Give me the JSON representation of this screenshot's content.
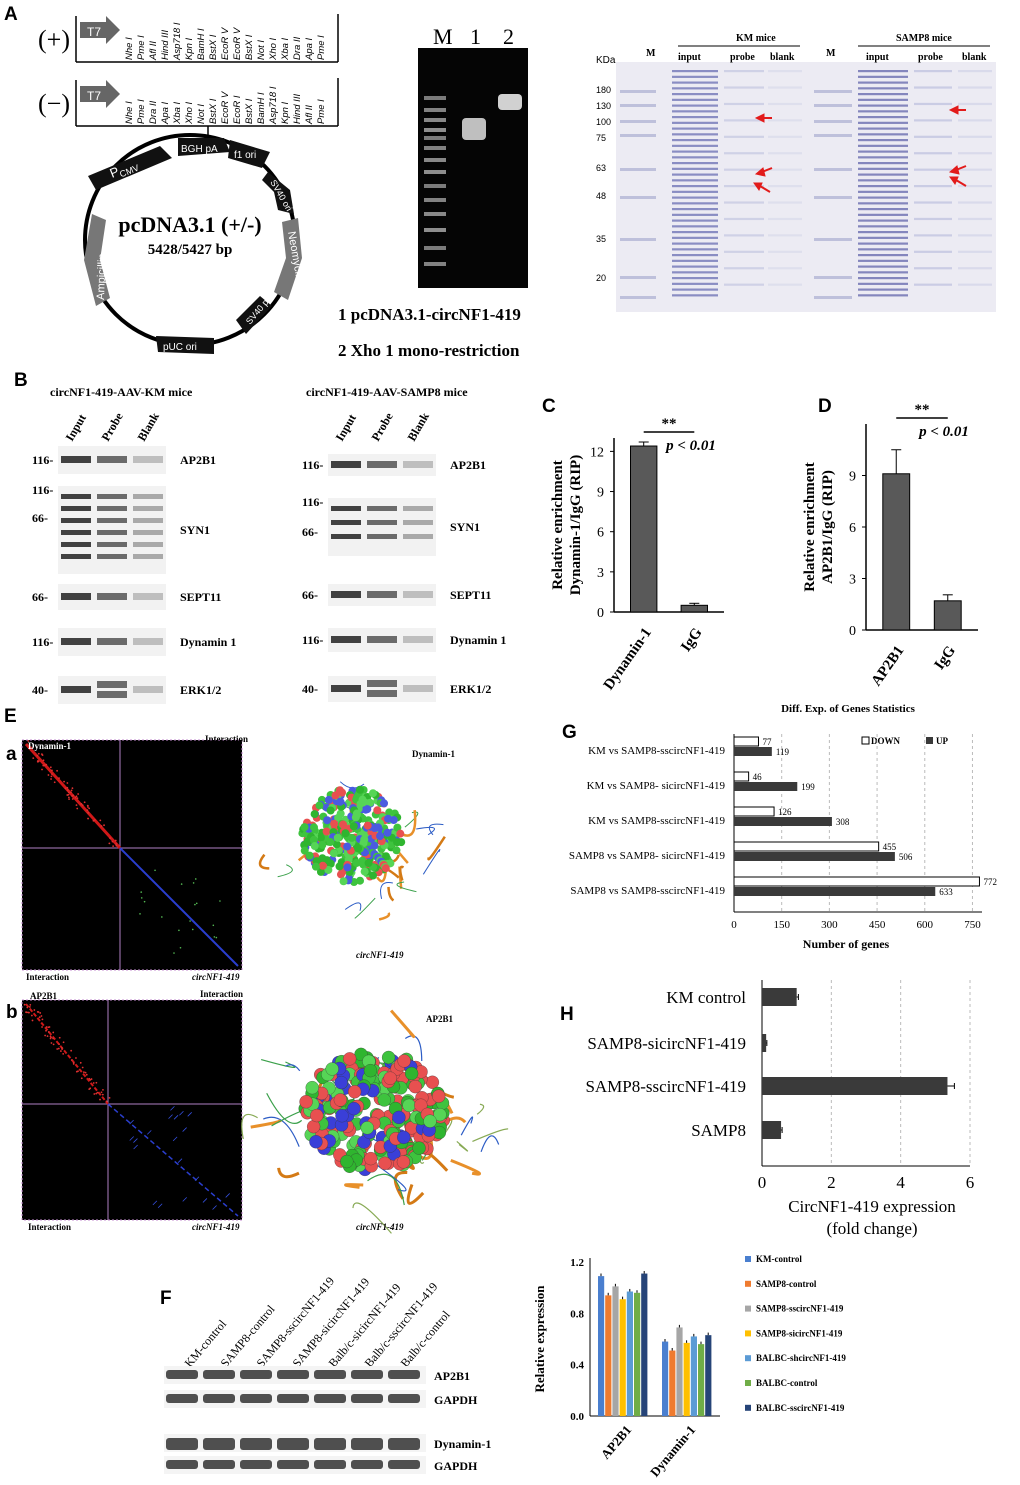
{
  "panel_labels": {
    "A": "A",
    "B": "B",
    "C": "C",
    "D": "D",
    "E": "E",
    "Ea": "a",
    "Eb": "b",
    "F": "F",
    "G": "G",
    "H": "H"
  },
  "vector": {
    "plus": "(+)",
    "minus": "(−)",
    "t7": "T7",
    "plus_sites": [
      "Nhe I",
      "Pme I",
      "Afl II",
      "Hind III",
      "Asp718 I",
      "Kpn I",
      "BamH I",
      "BstX I",
      "EcoR V",
      "EcoR V",
      "BstX I",
      "Not I",
      "Xho I",
      "Xba I",
      "Dra II",
      "Apa I",
      "Pme I"
    ],
    "minus_sites": [
      "Nhe I",
      "Pme I",
      "Dra II",
      "Apa I",
      "Xba I",
      "Xho I",
      "Not I",
      "BstX I",
      "EcoR V",
      "EcoR I",
      "BstX I",
      "BamH I",
      "Asp718 I",
      "Kpn I",
      "Hind III",
      "Afl II",
      "Pme I"
    ],
    "name": "pcDNA3.1 (+/-)",
    "size": "5428/5427 bp",
    "features": {
      "pcmv": "P",
      "pcmv_sub": "CMV",
      "bgh": "BGH pA",
      "f1": "f1 ori",
      "sv40": "SV40 ori",
      "neo": "Neomycin",
      "sv40pa": "SV40 pA",
      "puc": "pUC ori",
      "amp": "Ampicillin"
    }
  },
  "gel": {
    "lanes": [
      "M",
      "1",
      "2"
    ],
    "caption1": "1 pcDNA3.1-circNF1-419",
    "caption2": "2 Xho 1 mono-restriction"
  },
  "sds": {
    "kda": "KDa",
    "markers": [
      "180",
      "130",
      "100",
      "75",
      "63",
      "48",
      "35",
      "20"
    ],
    "km_title": "KM mice",
    "samp8_title": "SAMP8 mice",
    "lanes": [
      "M",
      "input",
      "probe",
      "blank"
    ]
  },
  "panelB": {
    "left_title": "circNF1-419-AAV-KM mice",
    "right_title": "circNF1-419-AAV-SAMP8 mice",
    "lanes": [
      "Input",
      "Probe",
      "Blank"
    ],
    "left_rows": [
      {
        "marker": "116-",
        "protein": "AP2B1"
      },
      {
        "marker": "116-",
        "marker2": "66-",
        "protein": "SYN1"
      },
      {
        "marker": "66-",
        "protein": "SEPT11"
      },
      {
        "marker": "116-",
        "protein": "Dynamin 1"
      },
      {
        "marker": "40-",
        "protein": "ERK1/2"
      }
    ],
    "right_rows": [
      {
        "marker": "116-",
        "protein": "AP2B1"
      },
      {
        "marker": "116-",
        "marker2": "66-",
        "protein": "SYN1"
      },
      {
        "marker": "66-",
        "protein": "SEPT11"
      },
      {
        "marker": "116-",
        "protein": "Dynamin 1"
      },
      {
        "marker": "40-",
        "protein": "ERK1/2"
      }
    ]
  },
  "panelE": {
    "a_title": "Dynamin-1",
    "interaction": "Interaction",
    "rna": "circNF1-419",
    "b_title": "AP2B1",
    "mol_a": "Dynamin-1",
    "mol_b": "AP2B1"
  },
  "panelF": {
    "lanes": [
      "KM-control",
      "SAMP8-control",
      "SAMP8-sscircNF1-419",
      "SAMP8-sicircNF1-419",
      "Balb/c-sicircNF1-419",
      "Balb/c-sscircNF1-419",
      "Balb/c-control"
    ],
    "rows": [
      "AP2B1",
      "GAPDH",
      "Dynamin-1",
      "GAPDH"
    ]
  },
  "chart_data": [
    {
      "id": "C",
      "type": "bar",
      "categories": [
        "Dynamin-1",
        "IgG"
      ],
      "values": [
        12.4,
        0.5
      ],
      "errors": [
        0.3,
        0.15
      ],
      "ylabel": "Relative enrichment\nDynamin-1/IgG (RIP)",
      "ylabel_line1": "Relative enrichment",
      "ylabel_line2": "Dynamin-1/IgG (RIP)",
      "ylim": [
        0,
        13
      ],
      "yticks": [
        "0",
        "3",
        "6",
        "9",
        "12"
      ],
      "significance": "**",
      "pvalue": "p < 0.01"
    },
    {
      "id": "D",
      "type": "bar",
      "categories": [
        "AP2B1",
        "IgG"
      ],
      "values": [
        9.1,
        1.7
      ],
      "errors": [
        1.4,
        0.35
      ],
      "ylabel_line1": "Relative enrichment",
      "ylabel_line2": "AP2B1/IgG (RIP)",
      "ylim": [
        0,
        12
      ],
      "yticks": [
        "0",
        "3",
        "6",
        "9"
      ],
      "significance": "**",
      "pvalue": "p < 0.01"
    },
    {
      "id": "G",
      "type": "bar",
      "orientation": "horizontal",
      "title": "Diff. Exp. of Genes Statistics",
      "categories": [
        "KM vs SAMP8-sscircNF1-419",
        "KM vs SAMP8- sicircNF1-419",
        "KM vs SAMP8-sscircNF1-419",
        "SAMP8 vs SAMP8- sicircNF1-419",
        "SAMP8 vs SAMP8-sscircNF1-419"
      ],
      "series": [
        {
          "name": "DOWN",
          "values": [
            77,
            46,
            126,
            455,
            772
          ],
          "labels": [
            "77",
            "46",
            "126",
            "455",
            "772"
          ]
        },
        {
          "name": "UP",
          "values": [
            119,
            199,
            308,
            506,
            633
          ],
          "labels": [
            "119",
            "199",
            "308",
            "506",
            "633"
          ]
        }
      ],
      "xlabel": "Number of genes",
      "xlim": [
        0,
        780
      ],
      "xticks": [
        "0",
        "150",
        "300",
        "450",
        "600",
        "750"
      ]
    },
    {
      "id": "H",
      "type": "bar",
      "orientation": "horizontal",
      "categories": [
        "KM control",
        "SAMP8-sicircNF1-419",
        "SAMP8-sscircNF1-419",
        "SAMP8"
      ],
      "values": [
        1.0,
        0.12,
        5.35,
        0.55
      ],
      "errors": [
        0.05,
        0.02,
        0.2,
        0.03
      ],
      "xlabel_line1": "CircNF1-419 expression",
      "xlabel_line2": "(fold change)",
      "xlim": [
        0,
        6
      ],
      "xticks": [
        "0",
        "2",
        "4",
        "6"
      ]
    },
    {
      "id": "F",
      "type": "bar",
      "categories": [
        "AP2B1",
        "Dynamin-1"
      ],
      "series": [
        {
          "name": "KM-control",
          "color": "#4a7fcf",
          "values": [
            1.09,
            0.58
          ]
        },
        {
          "name": "SAMP8-control",
          "color": "#ef7b2f",
          "values": [
            0.94,
            0.51
          ]
        },
        {
          "name": "SAMP8-sscircNF1-419",
          "color": "#a6a6a6",
          "values": [
            1.01,
            0.69
          ]
        },
        {
          "name": "SAMP8-sicircNF1-419",
          "color": "#ffc000",
          "values": [
            0.91,
            0.57
          ]
        },
        {
          "name": "BALBC-shcircNF1-419",
          "color": "#5b9bd5",
          "values": [
            0.97,
            0.62
          ]
        },
        {
          "name": "BALBC-control",
          "color": "#70ad47",
          "values": [
            0.96,
            0.56
          ]
        },
        {
          "name": "BALBC-sscircNF1-419",
          "color": "#264478",
          "values": [
            1.11,
            0.63
          ]
        }
      ],
      "ylabel": "Relative expression",
      "ylim": [
        0,
        1.2
      ],
      "yticks": [
        "0.0",
        "0.4",
        "0.8",
        "1.2"
      ]
    }
  ]
}
